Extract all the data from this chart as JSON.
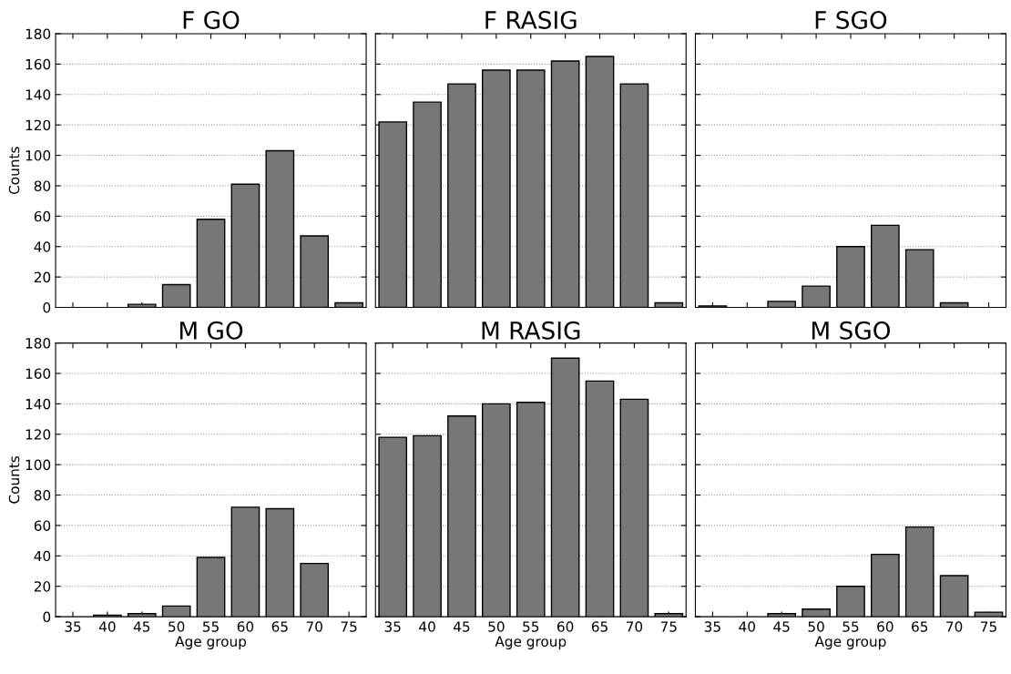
{
  "chart_data": [
    {
      "type": "bar",
      "title": "F GO",
      "ylabel": "Counts",
      "categories": [
        "35",
        "40",
        "45",
        "50",
        "55",
        "60",
        "65",
        "70",
        "75"
      ],
      "values": [
        0,
        0,
        2,
        15,
        58,
        81,
        103,
        47,
        3
      ],
      "color": "#777777",
      "ylim": [
        0,
        180
      ],
      "yticks": [
        0,
        20,
        40,
        60,
        80,
        100,
        120,
        140,
        160,
        180
      ],
      "grid": "y",
      "tick_labels": "y"
    },
    {
      "type": "bar",
      "title": "F RASIG",
      "categories": [
        "35",
        "40",
        "45",
        "50",
        "55",
        "60",
        "65",
        "70",
        "75"
      ],
      "values": [
        122,
        135,
        147,
        156,
        156,
        162,
        165,
        147,
        3
      ],
      "color": "#777777",
      "ylim": [
        0,
        180
      ],
      "yticks": [
        0,
        20,
        40,
        60,
        80,
        100,
        120,
        140,
        160,
        180
      ],
      "grid": "y",
      "tick_labels": false
    },
    {
      "type": "bar",
      "title": "F SGO",
      "categories": [
        "35",
        "40",
        "45",
        "50",
        "55",
        "60",
        "65",
        "70",
        "75"
      ],
      "values": [
        1,
        0,
        4,
        14,
        40,
        54,
        38,
        3,
        0
      ],
      "color": "#777777",
      "ylim": [
        0,
        180
      ],
      "yticks": [
        0,
        20,
        40,
        60,
        80,
        100,
        120,
        140,
        160,
        180
      ],
      "grid": "y",
      "tick_labels": false
    },
    {
      "type": "bar",
      "title": "M GO",
      "ylabel": "Counts",
      "xlabel": "Age group",
      "categories": [
        "35",
        "40",
        "45",
        "50",
        "55",
        "60",
        "65",
        "70",
        "75"
      ],
      "values": [
        0,
        1,
        2,
        7,
        39,
        72,
        71,
        35,
        0
      ],
      "color": "#777777",
      "ylim": [
        0,
        180
      ],
      "yticks": [
        0,
        20,
        40,
        60,
        80,
        100,
        120,
        140,
        160,
        180
      ],
      "grid": "y"
    },
    {
      "type": "bar",
      "title": "M RASIG",
      "xlabel": "Age group",
      "categories": [
        "35",
        "40",
        "45",
        "50",
        "55",
        "60",
        "65",
        "70",
        "75"
      ],
      "values": [
        118,
        119,
        132,
        140,
        141,
        170,
        155,
        143,
        2
      ],
      "color": "#777777",
      "ylim": [
        0,
        180
      ],
      "yticks": [
        0,
        20,
        40,
        60,
        80,
        100,
        120,
        140,
        160,
        180
      ],
      "grid": "y",
      "tick_labels": "x"
    },
    {
      "type": "bar",
      "title": "M SGO",
      "xlabel": "Age group",
      "categories": [
        "35",
        "40",
        "45",
        "50",
        "55",
        "60",
        "65",
        "70",
        "75"
      ],
      "values": [
        0,
        0,
        2,
        5,
        20,
        41,
        59,
        27,
        3
      ],
      "color": "#777777",
      "ylim": [
        0,
        180
      ],
      "yticks": [
        0,
        20,
        40,
        60,
        80,
        100,
        120,
        140,
        160,
        180
      ],
      "grid": "y",
      "tick_labels": "x"
    }
  ]
}
